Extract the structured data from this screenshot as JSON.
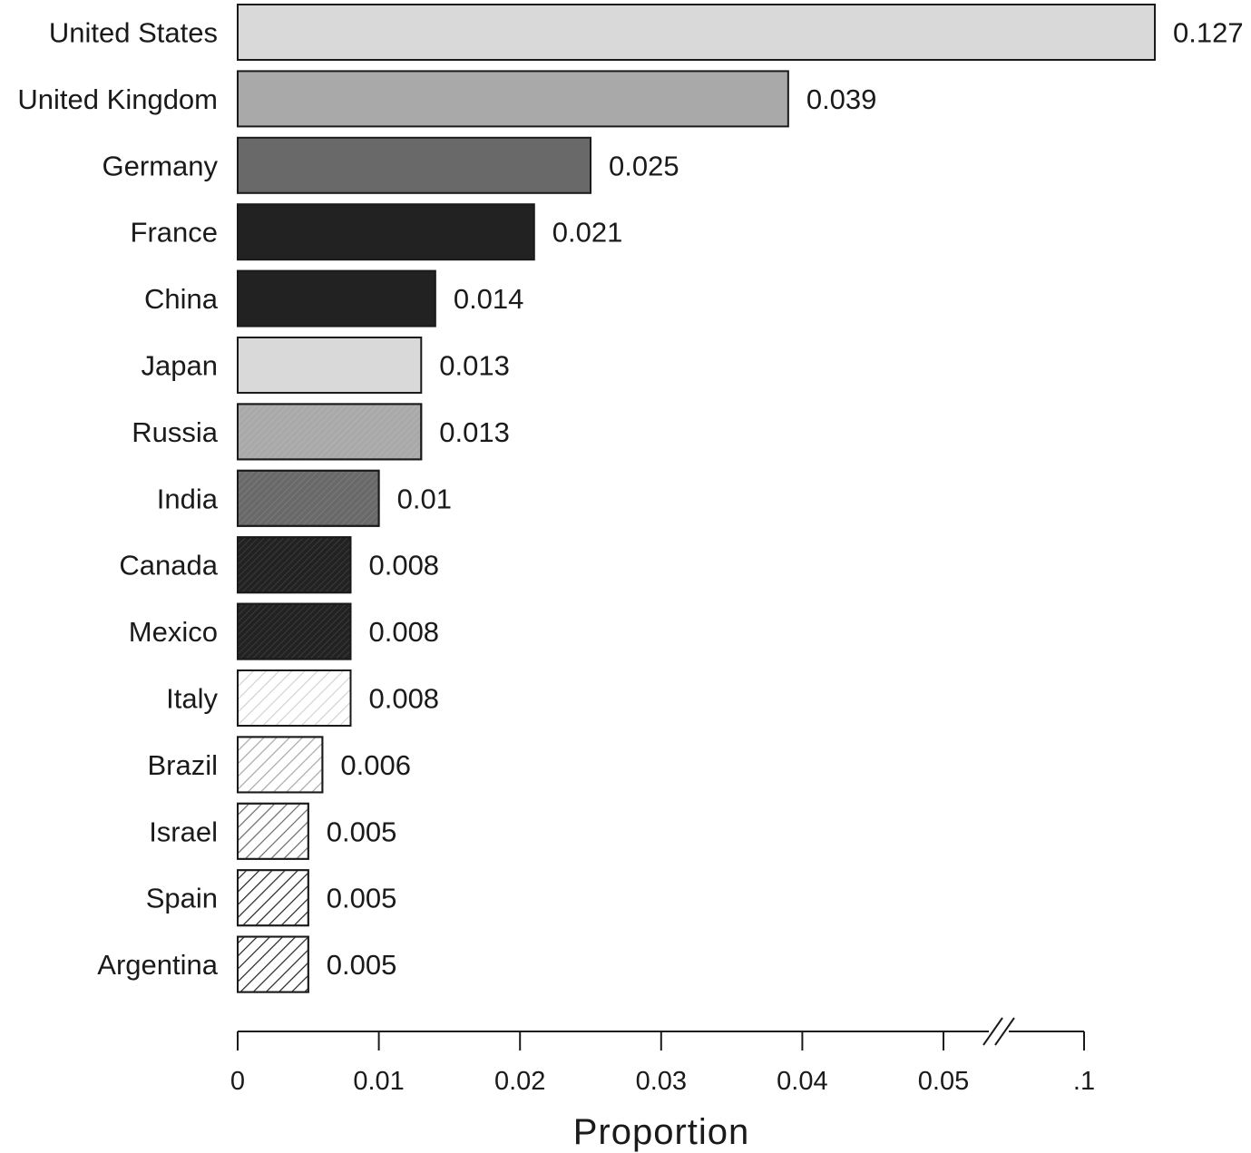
{
  "chart_data": {
    "type": "bar",
    "orientation": "horizontal",
    "title": "",
    "xlabel": "Proportion",
    "ylabel": "",
    "xlim": [
      0,
      0.1
    ],
    "axis_break": "between 0.05 and .1",
    "grid": false,
    "legend": "none",
    "x_ticks": [
      {
        "value": 0,
        "label": "0"
      },
      {
        "value": 0.01,
        "label": "0.01"
      },
      {
        "value": 0.02,
        "label": "0.02"
      },
      {
        "value": 0.03,
        "label": "0.03"
      },
      {
        "value": 0.04,
        "label": "0.04"
      },
      {
        "value": 0.05,
        "label": "0.05"
      },
      {
        "value": 0.1,
        "label": ".1"
      }
    ],
    "categories": [
      "United States",
      "United Kingdom",
      "Germany",
      "France",
      "China",
      "Japan",
      "Russia",
      "India",
      "Canada",
      "Mexico",
      "Italy",
      "Brazil",
      "Israel",
      "Spain",
      "Argentina"
    ],
    "values": [
      0.127,
      0.039,
      0.025,
      0.021,
      0.014,
      0.013,
      0.013,
      0.01,
      0.008,
      0.008,
      0.008,
      0.006,
      0.005,
      0.005,
      0.005
    ],
    "value_labels": [
      "0.127",
      "0.039",
      "0.025",
      "0.021",
      "0.014",
      "0.013",
      "0.013",
      "0.01",
      "0.008",
      "0.008",
      "0.008",
      "0.006",
      "0.005",
      "0.005",
      "0.005"
    ],
    "bar_styles": [
      {
        "fill": "#d9d9d9",
        "hatch": "none"
      },
      {
        "fill": "#a9a9a9",
        "hatch": "none"
      },
      {
        "fill": "#696969",
        "hatch": "none"
      },
      {
        "fill": "#222222",
        "hatch": "none"
      },
      {
        "fill": "#222222",
        "hatch": "none"
      },
      {
        "fill": "#d9d9d9",
        "hatch": "none"
      },
      {
        "fill": "#a9a9a9",
        "hatch": "fine-dense"
      },
      {
        "fill": "#696969",
        "hatch": "fine-dense"
      },
      {
        "fill": "#222222",
        "hatch": "fine-dense"
      },
      {
        "fill": "#222222",
        "hatch": "fine-dense"
      },
      {
        "fill": "#ffffff",
        "hatch": "light-diagonal"
      },
      {
        "fill": "#ffffff",
        "hatch": "medium-light-diagonal"
      },
      {
        "fill": "#ffffff",
        "hatch": "medium-diagonal"
      },
      {
        "fill": "#ffffff",
        "hatch": "dark-diagonal"
      },
      {
        "fill": "#ffffff",
        "hatch": "dark-diagonal"
      }
    ]
  }
}
